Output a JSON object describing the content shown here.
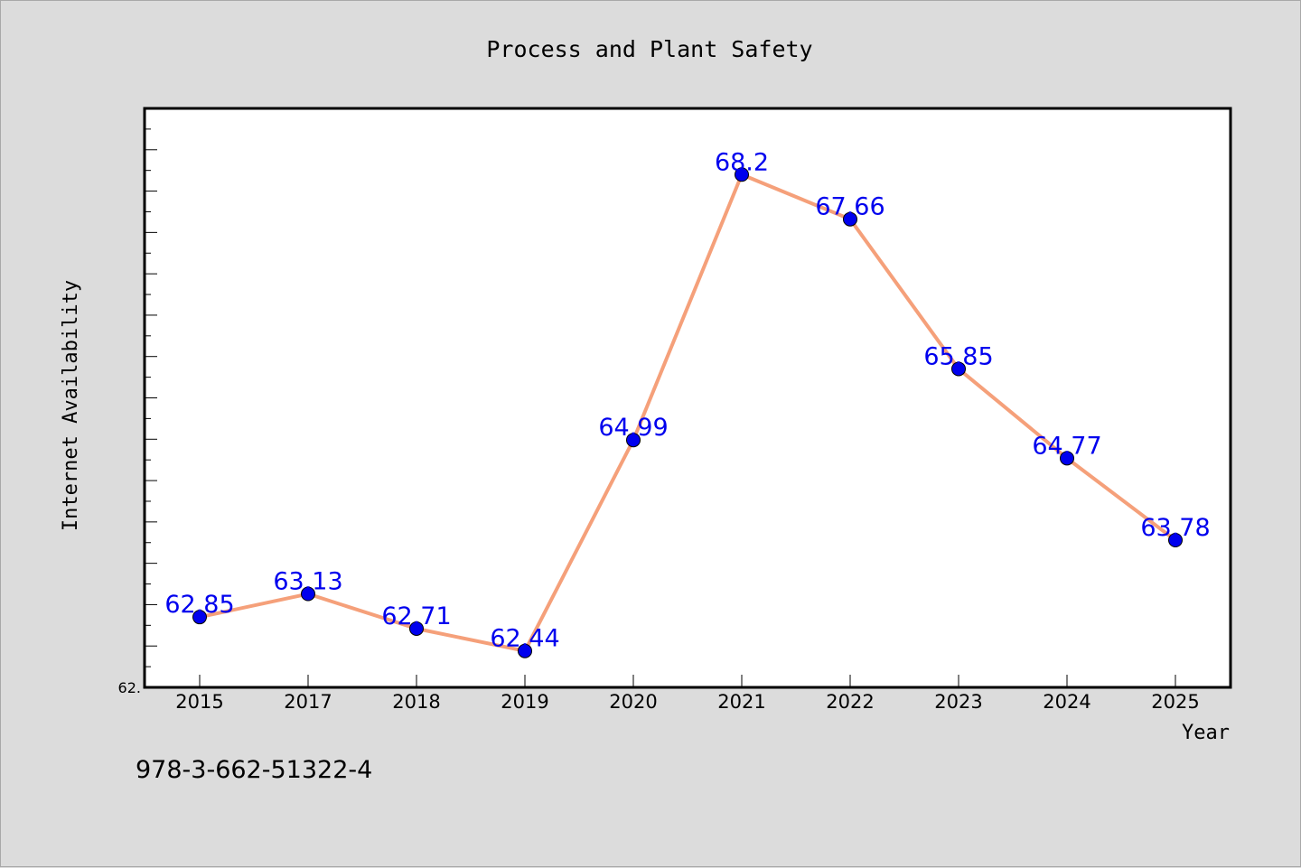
{
  "chart_data": {
    "type": "line",
    "title": "Process and Plant Safety",
    "xlabel": "Year",
    "ylabel": "Internet Availability",
    "categories": [
      "2015",
      "2017",
      "2018",
      "2019",
      "2020",
      "2021",
      "2022",
      "2023",
      "2024",
      "2025"
    ],
    "series": [
      {
        "values": [
          62.85,
          63.13,
          62.71,
          62.44,
          64.99,
          68.2,
          67.66,
          65.85,
          64.77,
          63.78
        ],
        "data_labels": [
          "62.85",
          "63.13",
          "62.71",
          "62.44",
          "64.99",
          "68.2",
          "67.66",
          "65.85",
          "64.77",
          "63.78"
        ],
        "line_color": "#f5a07a",
        "marker_color": "#0000ee"
      }
    ],
    "ylim": [
      62.0,
      69.0
    ],
    "y_tick_label": "62.",
    "label_color": "#0000ee",
    "grid": false,
    "legend": "none"
  },
  "footer": {
    "isbn": "978-3-662-51322-4"
  }
}
